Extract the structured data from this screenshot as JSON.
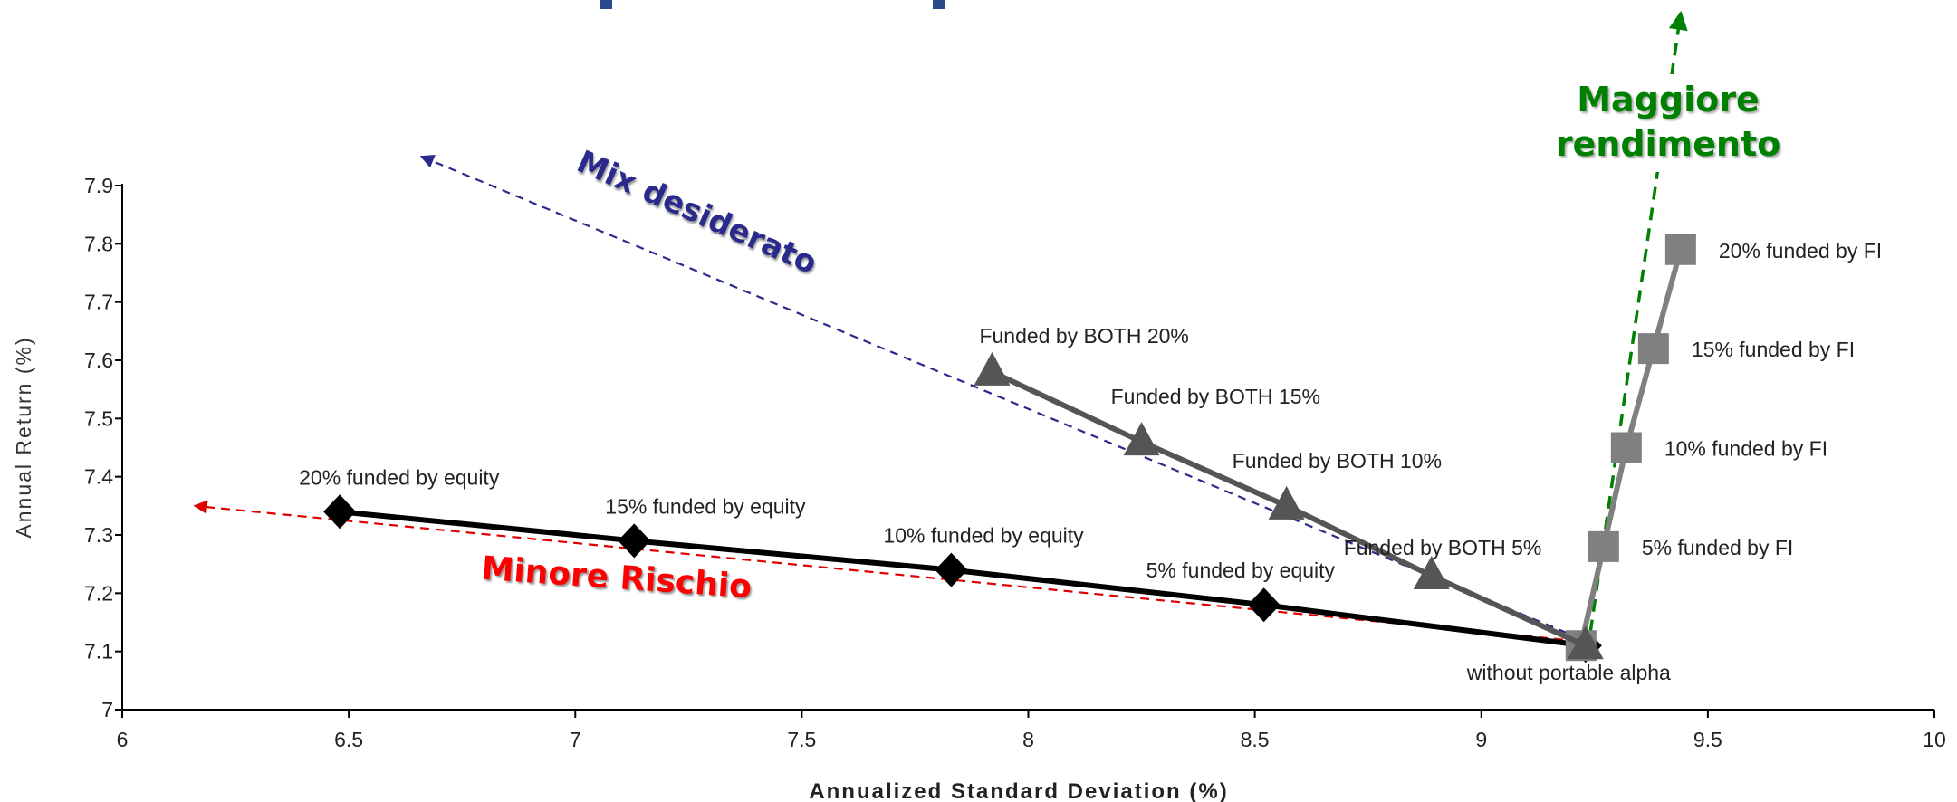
{
  "colors": {
    "equity": "#000000",
    "both": "#555555",
    "fi": "#808080",
    "red_arrow": "#e00000",
    "blue_arrow": "#2a2a8c",
    "green_arrow": "#008000"
  },
  "chart_data": {
    "type": "line",
    "xlabel": "Annualized Standard Deviation (%)",
    "ylabel": "Annual Return (%)",
    "xlim": [
      6,
      10
    ],
    "ylim": [
      7.0,
      7.9
    ],
    "xticks": [
      "6",
      "6.5",
      "7",
      "7.5",
      "8",
      "8.5",
      "9",
      "9.5",
      "10"
    ],
    "yticks": [
      "7",
      "7.1",
      "7.2",
      "7.3",
      "7.4",
      "7.5",
      "7.6",
      "7.7",
      "7.8",
      "7.9"
    ],
    "grid": false,
    "series": [
      {
        "key": "equity",
        "marker": "diamond",
        "points": [
          {
            "x": 9.23,
            "y": 7.11,
            "label": ""
          },
          {
            "x": 8.52,
            "y": 7.18,
            "label": "5%  funded by equity"
          },
          {
            "x": 7.83,
            "y": 7.24,
            "label": "10% funded by equity"
          },
          {
            "x": 7.13,
            "y": 7.29,
            "label": "15% funded by equity"
          },
          {
            "x": 6.48,
            "y": 7.34,
            "label": "20% funded by equity"
          }
        ]
      },
      {
        "key": "both",
        "marker": "triangle",
        "points": [
          {
            "x": 9.23,
            "y": 7.11,
            "label": ""
          },
          {
            "x": 8.89,
            "y": 7.23,
            "label": "Funded by BOTH 5%"
          },
          {
            "x": 8.57,
            "y": 7.35,
            "label": "Funded by BOTH 10%"
          },
          {
            "x": 8.25,
            "y": 7.46,
            "label": "Funded by BOTH 15%"
          },
          {
            "x": 7.92,
            "y": 7.58,
            "label": "Funded by BOTH 20%"
          }
        ]
      },
      {
        "key": "fi",
        "marker": "square",
        "points": [
          {
            "x": 9.22,
            "y": 7.11,
            "label": "without portable alpha"
          },
          {
            "x": 9.27,
            "y": 7.28,
            "label": "5% funded by FI"
          },
          {
            "x": 9.32,
            "y": 7.45,
            "label": "10% funded by FI"
          },
          {
            "x": 9.38,
            "y": 7.62,
            "label": "15% funded by FI"
          },
          {
            "x": 9.44,
            "y": 7.79,
            "label": "20% funded by FI"
          }
        ]
      }
    ],
    "annotations": {
      "minore": "Minore Rischio",
      "mix": "Mix desiderato",
      "maggiore_line1": "Maggiore",
      "maggiore_line2": "rendimento"
    }
  }
}
